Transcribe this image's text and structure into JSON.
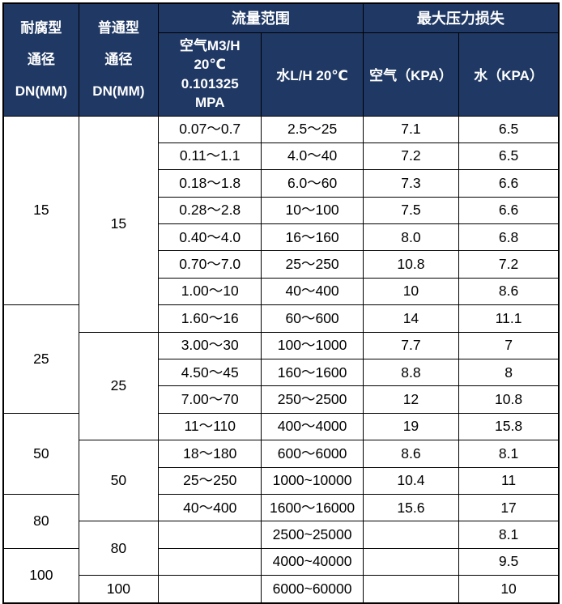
{
  "colors": {
    "header_bg": "#1f3864",
    "header_text": "#ffffff",
    "border": "#000000",
    "body_bg": "#ffffff",
    "body_text": "#000000"
  },
  "table": {
    "header": {
      "corrosion_col": "耐腐型\n通径\nDN(MM)",
      "normal_col": "普通型\n通径\nDN(MM)",
      "flow_range": "流量范围",
      "max_pressure_loss": "最大压力损失",
      "air_flow": "空气M3/H\n20℃\n0.101325\nMPA",
      "water_flow": "水L/H 20℃",
      "air_kpa": "空气（KPA）",
      "water_kpa": "水（KPA）"
    },
    "rows": [
      {
        "cells": [
          {
            "v": "15",
            "rs": 7,
            "dn": true
          },
          {
            "v": "15",
            "rs": 8,
            "dn": true
          },
          {
            "v": "0.07～0.7"
          },
          {
            "v": "2.5～25"
          },
          {
            "v": "7.1"
          },
          {
            "v": "6.5"
          }
        ]
      },
      {
        "cells": [
          {
            "v": "0.11～1.1"
          },
          {
            "v": "4.0～40"
          },
          {
            "v": "7.2"
          },
          {
            "v": "6.5"
          }
        ]
      },
      {
        "cells": [
          {
            "v": "0.18～1.8"
          },
          {
            "v": "6.0～60"
          },
          {
            "v": "7.3"
          },
          {
            "v": "6.6"
          }
        ]
      },
      {
        "cells": [
          {
            "v": "0.28～2.8"
          },
          {
            "v": "10～100"
          },
          {
            "v": "7.5"
          },
          {
            "v": "6.6"
          }
        ]
      },
      {
        "cells": [
          {
            "v": "0.40～4.0"
          },
          {
            "v": "16～160"
          },
          {
            "v": "8.0"
          },
          {
            "v": "6.8"
          }
        ]
      },
      {
        "cells": [
          {
            "v": "0.70～7.0"
          },
          {
            "v": "25～250"
          },
          {
            "v": "10.8"
          },
          {
            "v": "7.2"
          }
        ]
      },
      {
        "cells": [
          {
            "v": "1.00～10"
          },
          {
            "v": "40～400"
          },
          {
            "v": "10"
          },
          {
            "v": "8.6"
          }
        ]
      },
      {
        "cells": [
          {
            "v": "25",
            "rs": 4,
            "dn": true
          },
          {
            "v": "1.60～16"
          },
          {
            "v": "60～600"
          },
          {
            "v": "14"
          },
          {
            "v": "11.1"
          }
        ]
      },
      {
        "cells": [
          {
            "v": "25",
            "rs": 4,
            "dn": true
          },
          {
            "v": "3.00～30"
          },
          {
            "v": "100～1000"
          },
          {
            "v": "7.7"
          },
          {
            "v": "7"
          }
        ]
      },
      {
        "cells": [
          {
            "v": "4.50～45"
          },
          {
            "v": "160～1600"
          },
          {
            "v": "8.8"
          },
          {
            "v": "8"
          }
        ]
      },
      {
        "cells": [
          {
            "v": "7.00～70"
          },
          {
            "v": "250～2500"
          },
          {
            "v": "12"
          },
          {
            "v": "10.8"
          }
        ]
      },
      {
        "cells": [
          {
            "v": "50",
            "rs": 3,
            "dn": true
          },
          {
            "v": "11～110"
          },
          {
            "v": "400～4000"
          },
          {
            "v": "19"
          },
          {
            "v": "15.8"
          }
        ]
      },
      {
        "cells": [
          {
            "v": "50",
            "rs": 3,
            "dn": true
          },
          {
            "v": "18～180"
          },
          {
            "v": "600～6000"
          },
          {
            "v": "8.6"
          },
          {
            "v": "8.1"
          }
        ]
      },
      {
        "cells": [
          {
            "v": "25～250"
          },
          {
            "v": "1000~10000"
          },
          {
            "v": "10.4"
          },
          {
            "v": "11"
          }
        ]
      },
      {
        "cells": [
          {
            "v": "80",
            "rs": 2,
            "dn": true
          },
          {
            "v": "40～400"
          },
          {
            "v": "1600～16000"
          },
          {
            "v": "15.6"
          },
          {
            "v": "17"
          }
        ]
      },
      {
        "cells": [
          {
            "v": "80",
            "rs": 2,
            "dn": true
          },
          {
            "v": ""
          },
          {
            "v": "2500~25000"
          },
          {
            "v": ""
          },
          {
            "v": "8.1"
          }
        ]
      },
      {
        "cells": [
          {
            "v": "100",
            "rs": 2,
            "dn": true
          },
          {
            "v": ""
          },
          {
            "v": "4000~40000"
          },
          {
            "v": ""
          },
          {
            "v": "9.5"
          }
        ]
      },
      {
        "cells": [
          {
            "v": "100",
            "rs": 1,
            "dn": true
          },
          {
            "v": ""
          },
          {
            "v": "6000~60000"
          },
          {
            "v": ""
          },
          {
            "v": "10"
          }
        ]
      }
    ]
  }
}
